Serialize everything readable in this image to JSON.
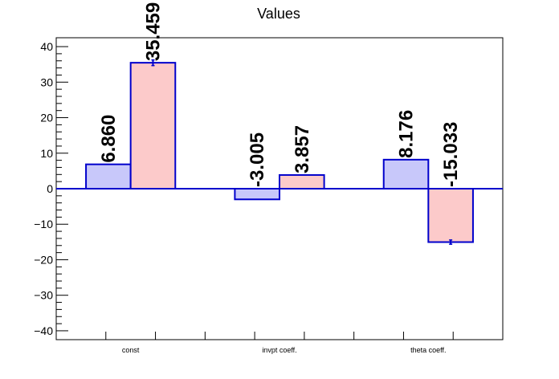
{
  "chart_data": {
    "type": "bar",
    "title": "Values",
    "xlabel": "",
    "ylabel": "",
    "ylim": [
      -42.5,
      42.5
    ],
    "yticks": [
      -40,
      -30,
      -20,
      -10,
      0,
      10,
      20,
      30,
      40
    ],
    "yticklabels": [
      "−40",
      "−30",
      "−20",
      "−10",
      "0",
      "10",
      "20",
      "30",
      "40"
    ],
    "categories": [
      "const",
      "invpt coeff.",
      "theta coeff."
    ],
    "series": [
      {
        "values": [
          6.86,
          -3.005,
          8.176
        ],
        "labels": [
          "6.860",
          "-3.005",
          "8.176"
        ],
        "errors": [
          0,
          0,
          0
        ],
        "fill": "#c8c8fa",
        "edge": "#0000cc"
      },
      {
        "values": [
          35.459,
          3.857,
          -15.033
        ],
        "labels": [
          "35.459",
          "3.857",
          "-15.033"
        ],
        "errors": [
          0.8,
          0,
          0.6
        ],
        "fill": "#fccaca",
        "edge": "#0000cc"
      }
    ],
    "zero_line_color": "#0000cc",
    "grid": false,
    "legend": "none"
  }
}
